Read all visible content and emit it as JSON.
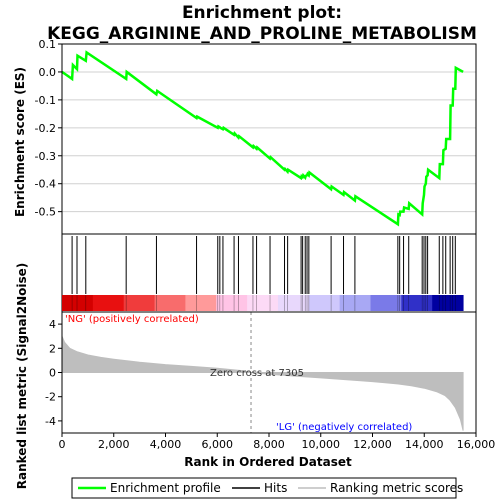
{
  "colors": {
    "es_line": "#00ff00",
    "hits": "#000000",
    "metric_fill": "#bebebe",
    "grid": "#d0d0d0",
    "pos_label": "#ff0000",
    "neg_label": "#0000ff",
    "zero_line": "#888888"
  },
  "chart_data": [
    {
      "type": "line",
      "title": "Enrichment plot:\nKEGG_ARGININE_AND_PROLINE_METABOLISM",
      "title_lines": [
        "Enrichment plot:",
        "KEGG_ARGININE_AND_PROLINE_METABOLISM"
      ],
      "ylabel": "Enrichment score (ES)",
      "xlim": [
        0,
        16000
      ],
      "ylim": [
        -0.58,
        0.1
      ],
      "yticks": [
        0.1,
        0.0,
        -0.1,
        -0.2,
        -0.3,
        -0.4,
        -0.5
      ],
      "ytick_labels": [
        "0.1",
        "0.0",
        "-0.1",
        "-0.2",
        "-0.3",
        "-0.4",
        "-0.5"
      ],
      "grid": true,
      "series": [
        {
          "name": "Enrichment profile",
          "x": [
            0,
            390,
            420,
            580,
            600,
            920,
            950,
            2480,
            2500,
            3650,
            3680,
            5200,
            5220,
            6020,
            6040,
            6100,
            6120,
            6220,
            6240,
            6650,
            6670,
            6820,
            6840,
            7380,
            7400,
            7520,
            7540,
            8040,
            8060,
            8600,
            8620,
            8720,
            8740,
            9240,
            9260,
            9300,
            9320,
            9400,
            9420,
            9470,
            9490,
            9540,
            9560,
            10400,
            10420,
            10880,
            10900,
            11320,
            11340,
            12980,
            13000,
            13050,
            13070,
            13200,
            13220,
            13400,
            13420,
            13920,
            13940,
            13990,
            14010,
            14060,
            14080,
            14130,
            14150,
            14580,
            14600,
            14720,
            14740,
            14830,
            14850,
            15000,
            15020,
            15100,
            15120,
            15200,
            15220,
            15500
          ],
          "y": [
            0.0,
            -0.025,
            0.025,
            0.01,
            0.058,
            0.04,
            0.07,
            -0.025,
            0.0,
            -0.08,
            -0.068,
            -0.165,
            -0.16,
            -0.2,
            -0.195,
            -0.198,
            -0.2,
            -0.205,
            -0.2,
            -0.225,
            -0.22,
            -0.235,
            -0.23,
            -0.27,
            -0.265,
            -0.275,
            -0.27,
            -0.31,
            -0.305,
            -0.35,
            -0.347,
            -0.357,
            -0.35,
            -0.38,
            -0.373,
            -0.376,
            -0.37,
            -0.378,
            -0.372,
            -0.37,
            -0.365,
            -0.37,
            -0.36,
            -0.42,
            -0.41,
            -0.44,
            -0.43,
            -0.46,
            -0.445,
            -0.545,
            -0.51,
            -0.512,
            -0.5,
            -0.5,
            -0.485,
            -0.49,
            -0.47,
            -0.51,
            -0.47,
            -0.44,
            -0.41,
            -0.4,
            -0.375,
            -0.37,
            -0.35,
            -0.38,
            -0.33,
            -0.33,
            -0.28,
            -0.275,
            -0.24,
            -0.24,
            -0.12,
            -0.12,
            -0.06,
            -0.06,
            0.015,
            0.0
          ]
        }
      ]
    },
    {
      "type": "hits",
      "xlim": [
        0,
        16000
      ],
      "hits": [
        390,
        580,
        920,
        2480,
        3650,
        5200,
        6020,
        6100,
        6220,
        6650,
        6820,
        7380,
        7520,
        8040,
        8600,
        8720,
        9240,
        9300,
        9400,
        9470,
        9540,
        10400,
        10880,
        11320,
        12980,
        13050,
        13200,
        13400,
        13920,
        13990,
        14060,
        14130,
        14580,
        14720,
        14830,
        15000,
        15100,
        15200
      ],
      "color_bar": [
        "#d40000",
        "#e81010",
        "#f03c3c",
        "#f86c6c",
        "#ff9a9a",
        "#ffc4e6",
        "#fcdaf6",
        "#e8d8fc",
        "#cfc8fc",
        "#a8a8f4",
        "#7a7ae8",
        "#3030c8",
        "#0000a0"
      ]
    },
    {
      "type": "area",
      "ylabel": "Ranked list metric (Signal2Noise)",
      "xlabel": "Rank in Ordered Dataset",
      "xlim": [
        0,
        16000
      ],
      "ylim": [
        -5.0,
        5.0
      ],
      "yticks": [
        4,
        2,
        0,
        -2,
        -4
      ],
      "xticks": [
        0,
        2000,
        4000,
        6000,
        8000,
        10000,
        12000,
        14000,
        16000
      ],
      "xtick_labels": [
        "0",
        "2,000",
        "4,000",
        "6,000",
        "8,000",
        "10,000",
        "12,000",
        "14,000",
        "16,000"
      ],
      "x": [
        0,
        100,
        300,
        600,
        1000,
        1500,
        2000,
        3000,
        4000,
        5000,
        6000,
        7000,
        7305,
        8000,
        9000,
        10000,
        11000,
        12000,
        13000,
        13500,
        14000,
        14500,
        14800,
        15000,
        15200,
        15400,
        15500
      ],
      "values": [
        3.0,
        2.5,
        2.0,
        1.7,
        1.45,
        1.25,
        1.1,
        0.85,
        0.65,
        0.5,
        0.35,
        0.15,
        0.0,
        -0.15,
        -0.3,
        -0.45,
        -0.6,
        -0.75,
        -0.95,
        -1.1,
        -1.3,
        -1.6,
        -1.9,
        -2.3,
        -2.9,
        -3.9,
        -4.8
      ],
      "annotations": {
        "positive": "'NG' (positively correlated)",
        "negative": "'LG' (negatively correlated)",
        "zero_cross": "Zero cross at 7305"
      },
      "zero_cross": 7305
    }
  ],
  "legend": {
    "items": [
      "Enrichment profile",
      "Hits",
      "Ranking metric scores"
    ]
  }
}
